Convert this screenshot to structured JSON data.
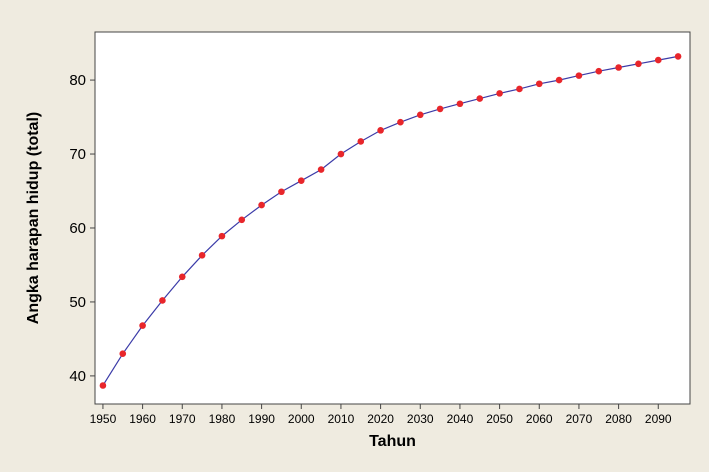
{
  "chart_data": {
    "type": "line",
    "title": "",
    "xlabel": "Tahun",
    "ylabel": "Angka harapan hidup (total)",
    "xlim": [
      1948,
      2098
    ],
    "ylim": [
      36.2,
      86.5
    ],
    "xticks": [
      1950,
      1960,
      1970,
      1980,
      1990,
      2000,
      2010,
      2020,
      2030,
      2040,
      2050,
      2060,
      2070,
      2080,
      2090
    ],
    "yticks": [
      40,
      50,
      60,
      70,
      80
    ],
    "grid": false,
    "legend": "none",
    "series": [
      {
        "line_color": "#3b3ba8",
        "marker_color": "#e8262b",
        "x": [
          1950,
          1955,
          1960,
          1965,
          1970,
          1975,
          1980,
          1985,
          1990,
          1995,
          2000,
          2005,
          2010,
          2015,
          2020,
          2025,
          2030,
          2035,
          2040,
          2045,
          2050,
          2055,
          2060,
          2065,
          2070,
          2075,
          2080,
          2085,
          2090,
          2095
        ],
        "y": [
          38.7,
          43.0,
          46.8,
          50.2,
          53.4,
          56.3,
          58.9,
          61.1,
          63.1,
          64.9,
          66.4,
          67.9,
          70.0,
          71.7,
          73.2,
          74.3,
          75.3,
          76.1,
          76.8,
          77.5,
          78.2,
          78.8,
          79.5,
          80.0,
          80.6,
          81.2,
          81.7,
          82.2,
          82.7,
          83.2
        ]
      }
    ]
  }
}
